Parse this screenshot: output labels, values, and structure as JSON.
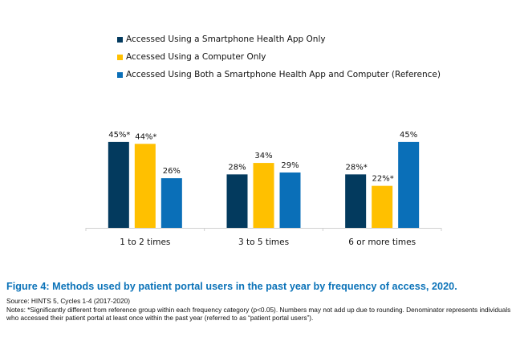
{
  "chart_data": {
    "type": "bar",
    "title": "",
    "xlabel": "",
    "ylabel": "",
    "ylim": [
      0,
      50
    ],
    "grid": false,
    "legend_position": "top",
    "categories": [
      "1 to 2 times",
      "3 to 5 times",
      "6 or more times"
    ],
    "series": [
      {
        "name": "Accessed Using a Smartphone Health App Only",
        "color": "#033a5e",
        "values": [
          45,
          28,
          28
        ],
        "labels": [
          "45%*",
          "28%",
          "28%*"
        ]
      },
      {
        "name": "Accessed Using a Computer Only",
        "color": "#ffc000",
        "values": [
          44,
          34,
          22
        ],
        "labels": [
          "44%*",
          "34%",
          "22%*"
        ]
      },
      {
        "name": "Accessed Using Both a Smartphone Health App and Computer (Reference)",
        "color": "#0a6fb8",
        "values": [
          26,
          29,
          45
        ],
        "labels": [
          "26%",
          "29%",
          "45%"
        ]
      }
    ]
  },
  "caption": {
    "title": "Figure 4: Methods used by patient portal users in the past year by frequency of access, 2020.",
    "source": "Source: HINTS 5, Cycles 1-4 (2017-2020)",
    "notes": "Notes: *Significantly different from reference group within each frequency category (p<0.05). Numbers may not add up due to rounding. Denominator represents individuals who accessed their patient portal at least once within the past year (referred to as “patient portal users”)."
  }
}
